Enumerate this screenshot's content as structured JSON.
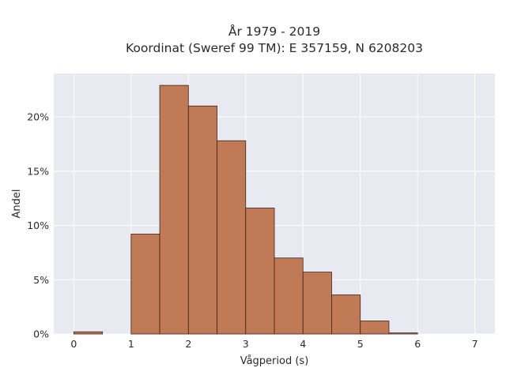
{
  "chart_data": {
    "type": "bar",
    "title_line1": "År 1979 - 2019",
    "title_line2": "Koordinat (Sweref 99 TM): E 357159, N 6208203",
    "xlabel": "Vågperiod (s)",
    "ylabel": "Andel",
    "bin_width": 0.5,
    "bins": [
      {
        "start": 0.0,
        "value": 0.2
      },
      {
        "start": 0.5,
        "value": 0.0
      },
      {
        "start": 1.0,
        "value": 9.2
      },
      {
        "start": 1.5,
        "value": 22.9
      },
      {
        "start": 2.0,
        "value": 21.0
      },
      {
        "start": 2.5,
        "value": 17.8
      },
      {
        "start": 3.0,
        "value": 11.6
      },
      {
        "start": 3.5,
        "value": 7.0
      },
      {
        "start": 4.0,
        "value": 5.7
      },
      {
        "start": 4.5,
        "value": 3.6
      },
      {
        "start": 5.0,
        "value": 1.2
      },
      {
        "start": 5.5,
        "value": 0.1
      }
    ],
    "xlim": [
      -0.35,
      7.35
    ],
    "ylim": [
      0,
      24
    ],
    "xticks": [
      0,
      1,
      2,
      3,
      4,
      5,
      6,
      7
    ],
    "xtick_labels": [
      "0",
      "1",
      "2",
      "3",
      "4",
      "5",
      "6",
      "7"
    ],
    "yticks": [
      0,
      5,
      10,
      15,
      20
    ],
    "ytick_labels": [
      "0%",
      "5%",
      "10%",
      "15%",
      "20%"
    ],
    "grid": true,
    "colors": {
      "plot_bg": "#e9e9f2",
      "bar_fill": "#c07a55",
      "bar_edge": "#3a2418"
    }
  }
}
